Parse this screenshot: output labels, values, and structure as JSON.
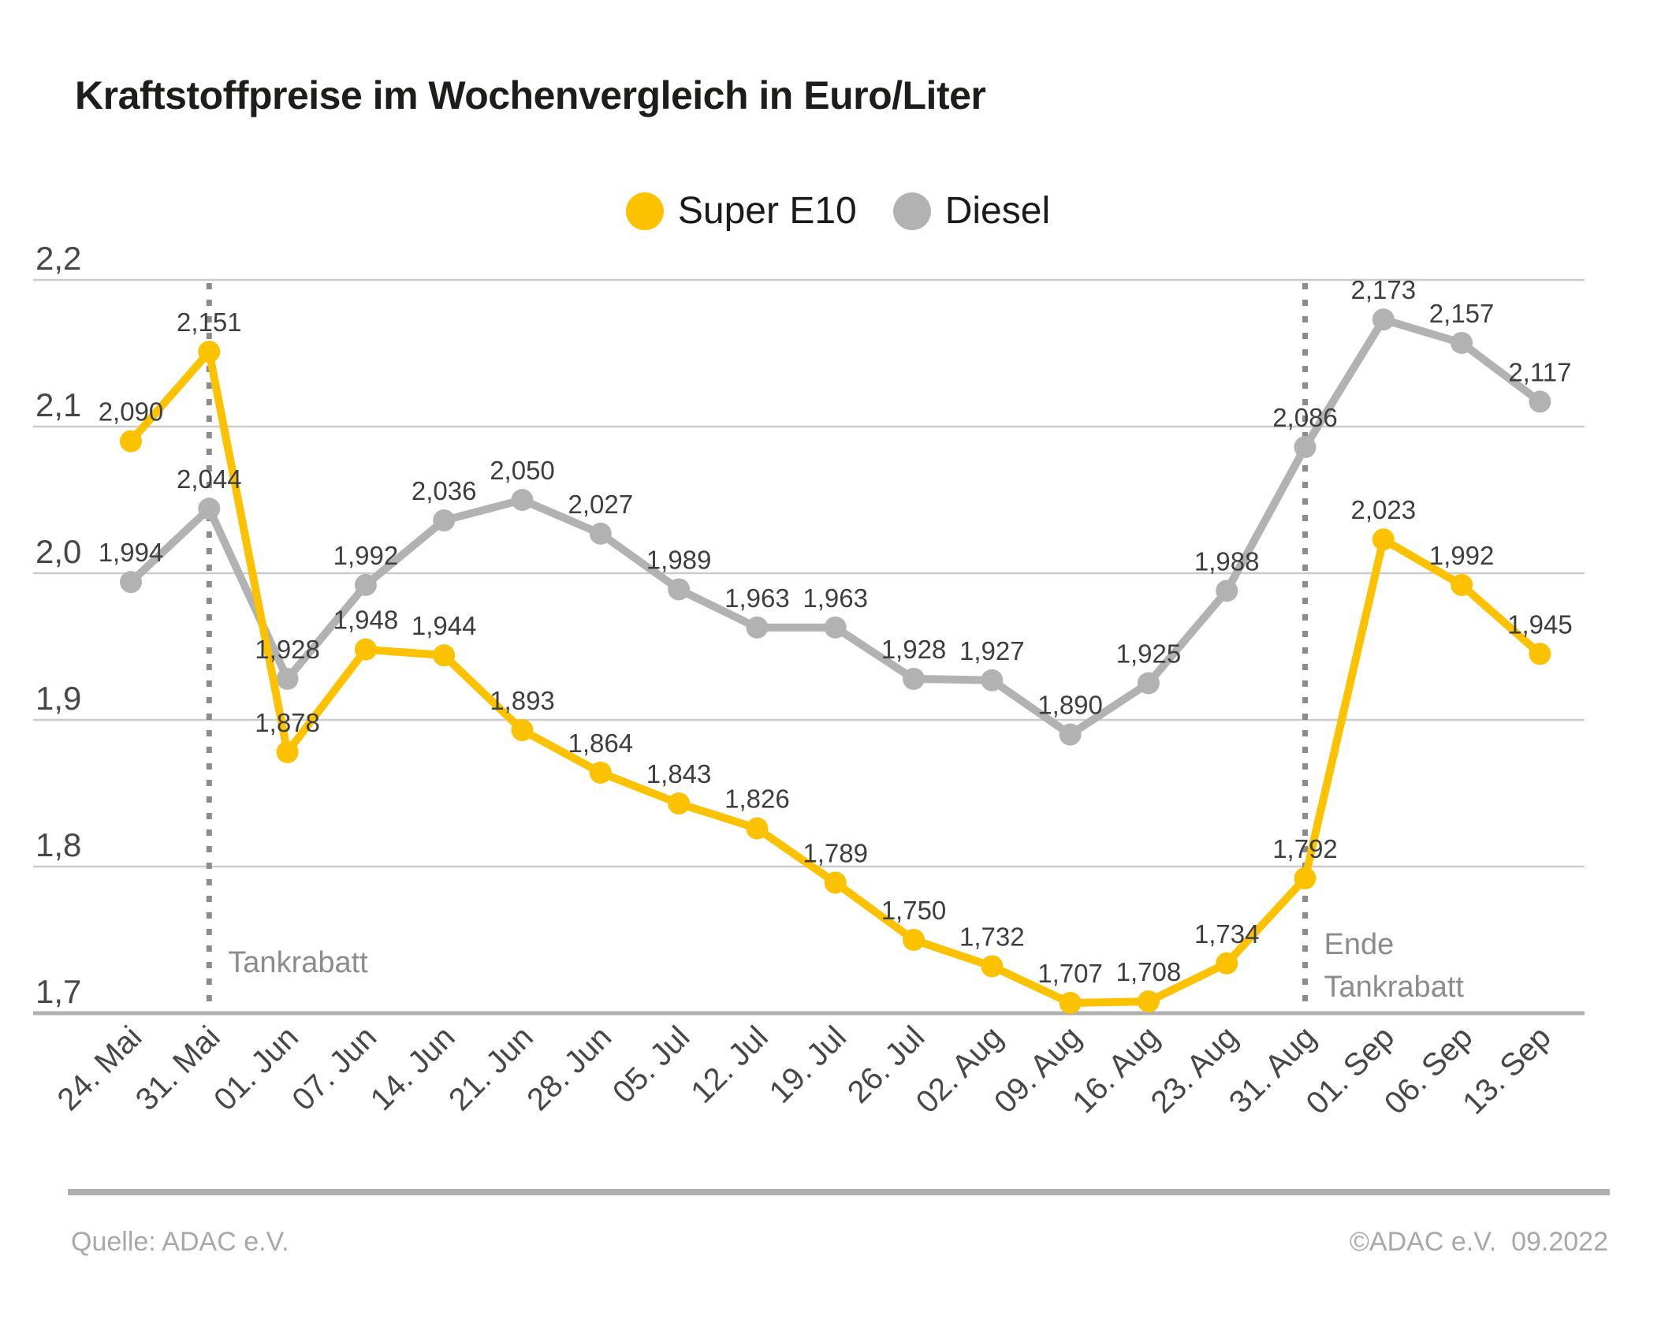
{
  "title": "Kraftstoffpreise im Wochenvergleich in Euro/Liter",
  "legend": {
    "items": [
      {
        "label": "Super E10",
        "color": "#FCC200"
      },
      {
        "label": "Diesel",
        "color": "#B2B2B2"
      }
    ]
  },
  "chart_data": {
    "type": "line",
    "title": "Kraftstoffpreise im Wochenvergleich in Euro/Liter",
    "xlabel": "",
    "ylabel": "Euro/Liter",
    "ylim": [
      1.7,
      2.2
    ],
    "grid": true,
    "legend_position": "top-center",
    "categories": [
      "24. Mai",
      "31. Mai",
      "01. Jun",
      "07. Jun",
      "14. Jun",
      "21. Jun",
      "28. Jun",
      "05. Jul",
      "12. Jul",
      "19. Jul",
      "26. Jul",
      "02. Aug",
      "09. Aug",
      "16. Aug",
      "23. Aug",
      "31. Aug",
      "01. Sep",
      "06. Sep",
      "13. Sep"
    ],
    "y_ticks": {
      "values": [
        2.2,
        2.1,
        2.0,
        1.9,
        1.8,
        1.7
      ],
      "labels": [
        "2,2",
        "2,1",
        "2,0",
        "1,9",
        "1,8",
        "1,7"
      ]
    },
    "series": [
      {
        "name": "Super E10",
        "color": "#FCC200",
        "values": [
          2.09,
          2.151,
          1.878,
          1.948,
          1.944,
          1.893,
          1.864,
          1.843,
          1.826,
          1.789,
          1.75,
          1.732,
          1.707,
          1.708,
          1.734,
          1.792,
          2.023,
          1.992,
          1.945
        ],
        "labels": [
          "2,090",
          "2,151",
          "1,878",
          "1,948",
          "1,944",
          "1,893",
          "1,864",
          "1,843",
          "1,826",
          "1,789",
          "1,750",
          "1,732",
          "1,707",
          "1,708",
          "1,734",
          "1,792",
          "2,023",
          "1,992",
          "1,945"
        ]
      },
      {
        "name": "Diesel",
        "color": "#B2B2B2",
        "values": [
          1.994,
          2.044,
          1.928,
          1.992,
          2.036,
          2.05,
          2.027,
          1.989,
          1.963,
          1.963,
          1.928,
          1.927,
          1.89,
          1.925,
          1.988,
          2.086,
          2.173,
          2.157,
          2.117
        ],
        "labels": [
          "1,994",
          "2,044",
          "1,928",
          "1,992",
          "2,036",
          "2,050",
          "2,027",
          "1,989",
          "1,963",
          "1,963",
          "1,928",
          "1,927",
          "1,890",
          "1,925",
          "1,988",
          "2,086",
          "2,173",
          "2,157",
          "2,117"
        ]
      }
    ],
    "vlines": [
      {
        "index": 1,
        "category": "31. Mai",
        "style": "dotted",
        "color": "#8C8C8C",
        "label_lines": [
          "Tankrabatt"
        ]
      },
      {
        "index": 15,
        "category": "31. Aug",
        "style": "dotted",
        "color": "#8C8C8C",
        "label_lines": [
          "Ende",
          "Tankrabatt"
        ]
      }
    ]
  },
  "footer": {
    "source": "Quelle: ADAC e.V.",
    "copyright": "©ADAC e.V.  09.2022"
  }
}
